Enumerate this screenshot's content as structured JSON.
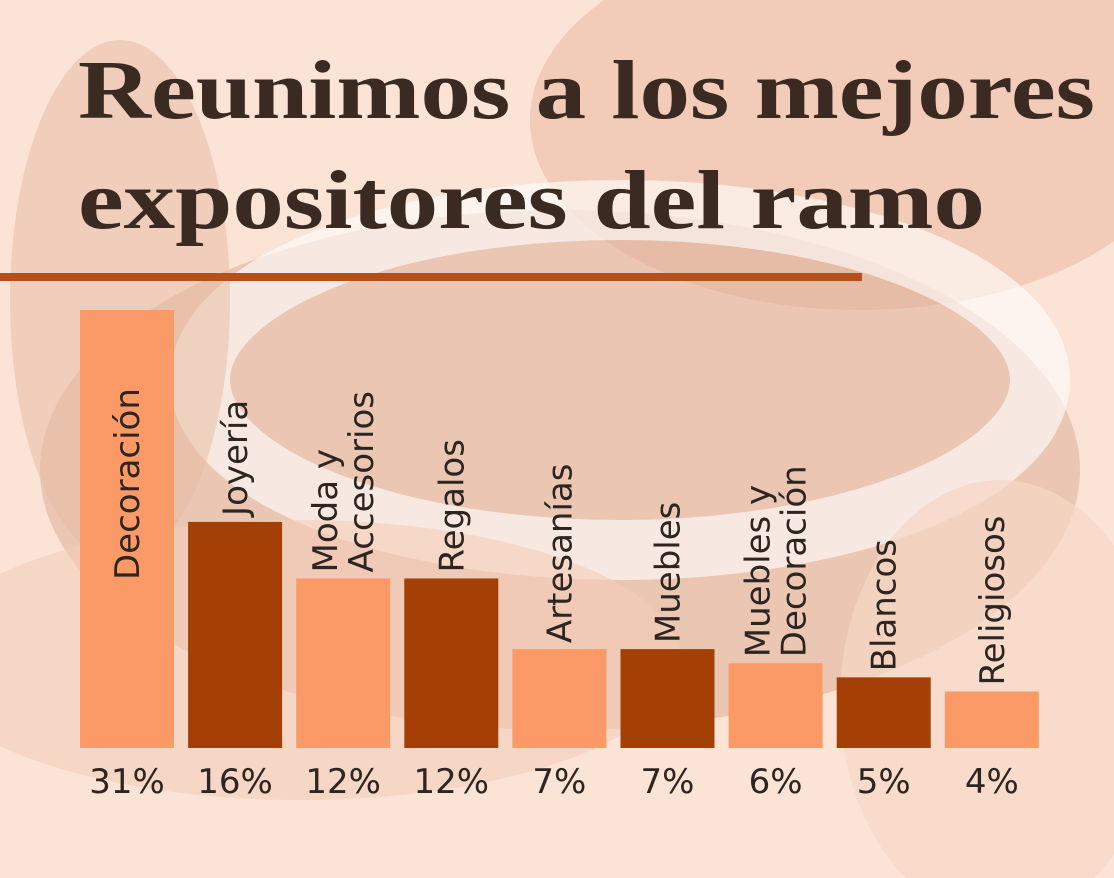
{
  "chart_data": {
    "type": "bar",
    "title": [
      "Reunimos a los mejores",
      "expositores del ramo"
    ],
    "categories": [
      [
        "Decoración"
      ],
      [
        "Joyería"
      ],
      [
        "Moda y",
        "Accesorios"
      ],
      [
        "Regalos"
      ],
      [
        "Artesanías"
      ],
      [
        "Muebles"
      ],
      [
        "Muebles y",
        "Decoración"
      ],
      [
        "Blancos"
      ],
      [
        "Religiosos"
      ]
    ],
    "values": [
      31,
      16,
      12,
      12,
      7,
      7,
      6,
      5,
      4
    ],
    "value_labels": [
      "31%",
      "16%",
      "12%",
      "12%",
      "7%",
      "7%",
      "6%",
      "5%",
      "4%"
    ],
    "colors": [
      "#fb9a66",
      "#a43f05",
      "#fb9a66",
      "#a43f05",
      "#fb9a66",
      "#a43f05",
      "#fb9a66",
      "#a43f05",
      "#fb9a66"
    ]
  }
}
